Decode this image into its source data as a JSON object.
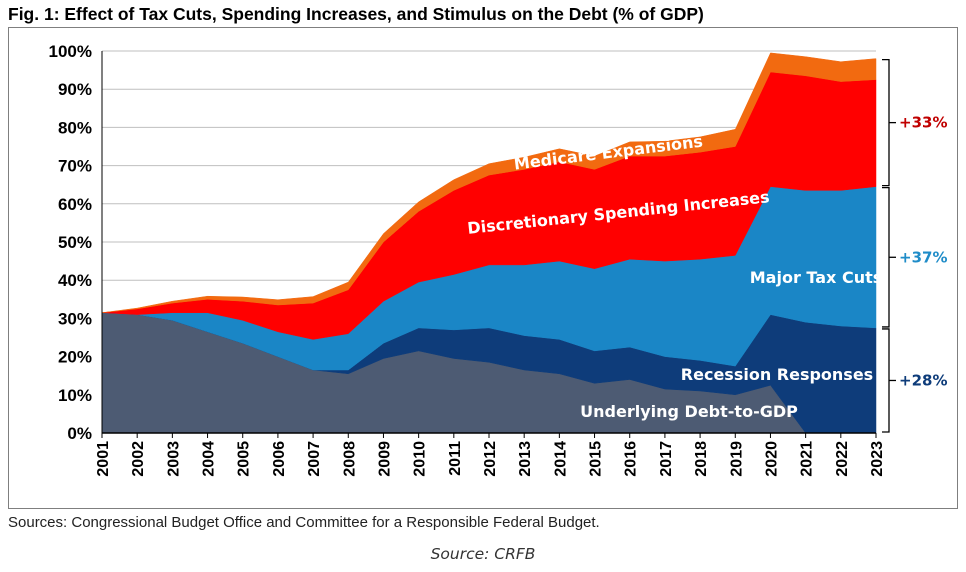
{
  "title": "Fig. 1: Effect of Tax Cuts, Spending Increases, and Stimulus on the Debt (% of GDP)",
  "sources": "Sources: Congressional Budget Office and Committee for a Responsible Federal Budget.",
  "caption": "Source: CRFB",
  "chart_data": {
    "type": "area",
    "stacked": true,
    "title": "Fig. 1: Effect of Tax Cuts, Spending Increases, and Stimulus on the Debt (% of GDP)",
    "xlabel": "",
    "ylabel": "",
    "ylim": [
      0,
      100
    ],
    "yticks": [
      "0%",
      "10%",
      "20%",
      "30%",
      "40%",
      "50%",
      "60%",
      "70%",
      "80%",
      "90%",
      "100%"
    ],
    "grid": true,
    "x": [
      "2001",
      "2002",
      "2003",
      "2004",
      "2005",
      "2006",
      "2007",
      "2008",
      "2009",
      "2010",
      "2011",
      "2012",
      "2013",
      "2014",
      "2015",
      "2016",
      "2017",
      "2018",
      "2019",
      "2020",
      "2021",
      "2022",
      "2023"
    ],
    "series": [
      {
        "name": "Underlying Debt-to-GDP",
        "color": "#4d5b73",
        "values": [
          31.5,
          31,
          29.5,
          26.5,
          23.5,
          20,
          16.5,
          15.5,
          19.5,
          21.5,
          19.5,
          18.5,
          16.5,
          15.5,
          13,
          14,
          11.5,
          11,
          10,
          12.5,
          0,
          0,
          0
        ]
      },
      {
        "name": "Recession Responses",
        "color": "#0e3c7a",
        "values": [
          0,
          0,
          0,
          0,
          0,
          0,
          0,
          1,
          4,
          6,
          7.5,
          9,
          9,
          9,
          8.5,
          8.5,
          8.5,
          8,
          7.5,
          18.5,
          29,
          28,
          27.5
        ]
      },
      {
        "name": "Major Tax Cuts",
        "color": "#1a86c6",
        "values": [
          0,
          0,
          2,
          5,
          6,
          6.5,
          8,
          9.5,
          11,
          12,
          14.5,
          16.5,
          18.5,
          20.5,
          21.5,
          23,
          25,
          26.5,
          29,
          33.5,
          34.5,
          35.5,
          37
        ]
      },
      {
        "name": "Discretionary Spending Increases",
        "color": "#ff0000",
        "values": [
          0,
          1.5,
          2.5,
          3.5,
          5,
          7,
          9.5,
          11.5,
          15.5,
          18.5,
          22,
          23.5,
          25,
          26,
          26,
          27,
          27.5,
          28,
          28.5,
          30,
          30,
          28.5,
          28
        ]
      },
      {
        "name": "Medicare Expansions",
        "color": "#f26a10",
        "values": [
          0,
          0.2,
          0.5,
          0.8,
          1.1,
          1.4,
          1.7,
          2,
          2.2,
          2.5,
          2.8,
          3,
          3.2,
          3.4,
          3.5,
          3.7,
          3.9,
          4,
          4.5,
          5,
          5,
          5.2,
          5.5
        ]
      }
    ],
    "annotations": [
      {
        "label": "+33%",
        "color": "#c00000",
        "from": 64.5,
        "to": 98
      },
      {
        "label": "+37%",
        "color": "#1f8cc8",
        "from": 27.5,
        "to": 64.5
      },
      {
        "label": "+28%",
        "color": "#0e3c7a",
        "from": 0,
        "to": 27.5
      }
    ]
  }
}
